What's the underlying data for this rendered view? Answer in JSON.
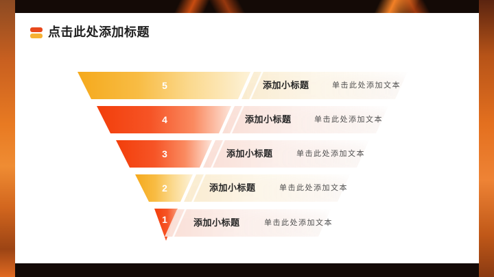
{
  "slide_title": "点击此处添加标题",
  "title_bullet": {
    "top_color": "#e8481c",
    "bottom_color": "#f6b133"
  },
  "funnel": {
    "levels": [
      {
        "number": "5",
        "variant": "yellow",
        "subtitle": "添加小标题",
        "body": "单击此处添加文本"
      },
      {
        "number": "4",
        "variant": "red",
        "subtitle": "添加小标题",
        "body": "单击此处添加文本"
      },
      {
        "number": "3",
        "variant": "red",
        "subtitle": "添加小标题",
        "body": "单击此处添加文本"
      },
      {
        "number": "2",
        "variant": "yellow",
        "subtitle": "添加小标题",
        "body": "单击此处添加文本"
      },
      {
        "number": "1",
        "variant": "red",
        "subtitle": "添加小标题",
        "body": "单击此处添加文本"
      }
    ],
    "colors": {
      "yellow": "#f7b42c",
      "red": "#f4490f",
      "yellow_tint": "#faf0d9",
      "red_tint": "#fbe7e0"
    }
  }
}
